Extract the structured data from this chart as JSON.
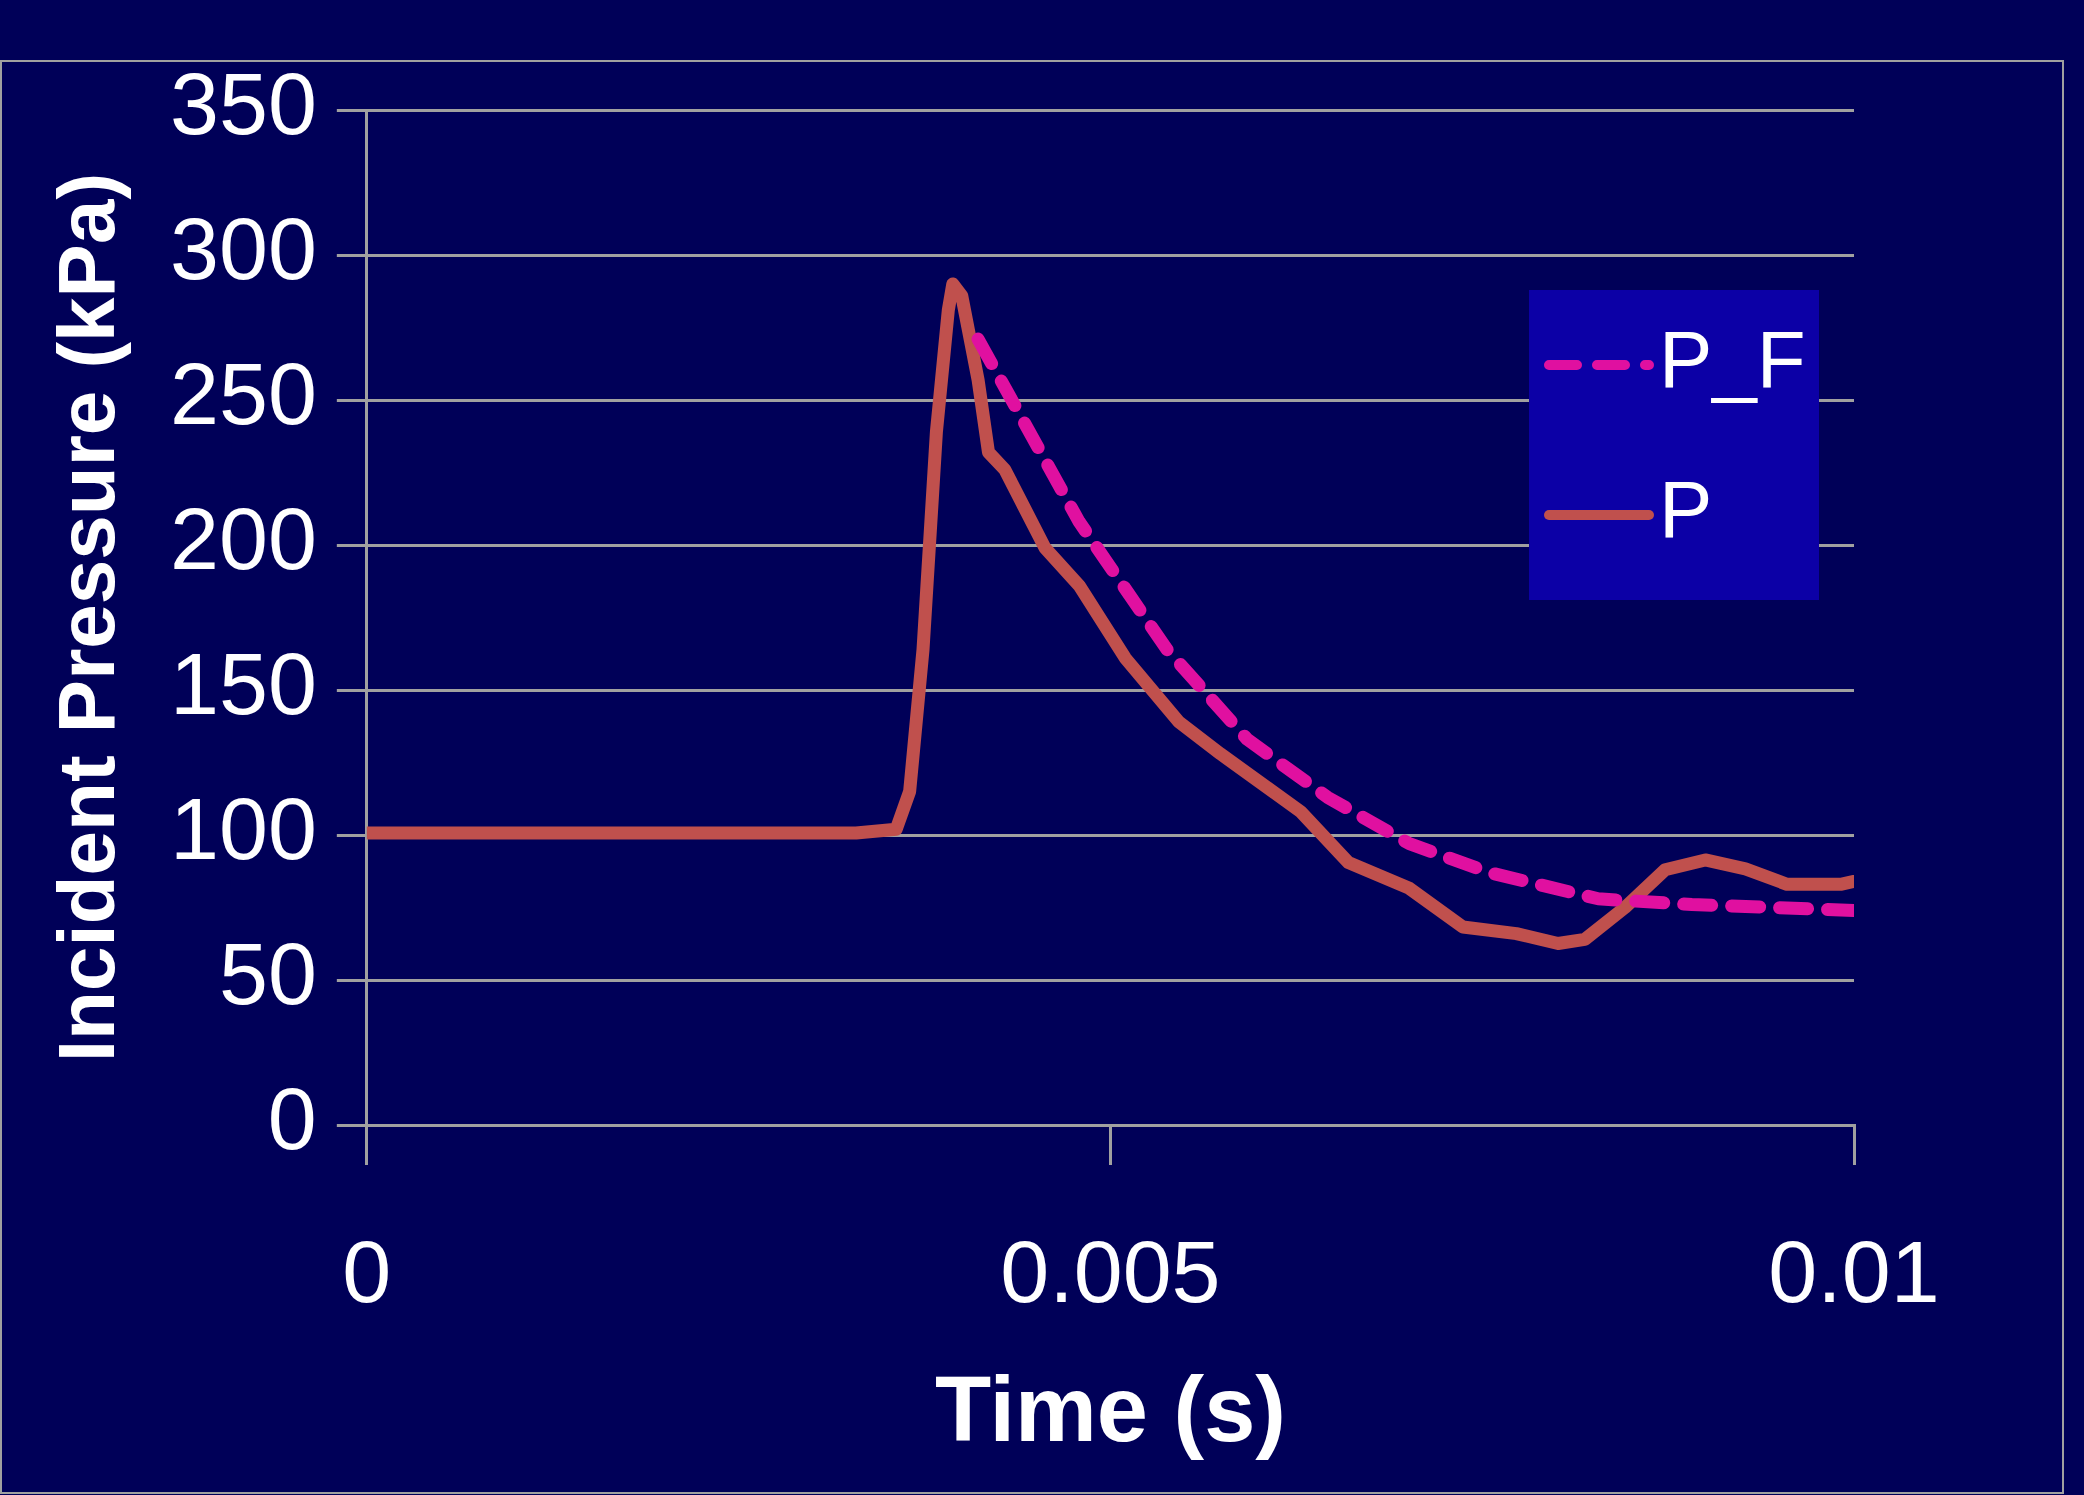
{
  "chart_data": {
    "type": "line",
    "xlabel": "Time (s)",
    "ylabel": "Incident Pressure (kPa)",
    "xlim": [
      0,
      0.01
    ],
    "xticks": [
      0,
      0.005,
      0.01
    ],
    "ylim": [
      0,
      350
    ],
    "yticks": [
      0,
      50,
      100,
      150,
      200,
      250,
      300,
      350
    ],
    "grid": "y",
    "legend": "top right",
    "series": [
      {
        "name": "P_F",
        "color": "#e010a0",
        "line_style": "dashed",
        "x": [
          0.00411,
          0.00438,
          0.00479,
          0.00538,
          0.00592,
          0.00646,
          0.00701,
          0.00755,
          0.00828,
          0.00891,
          0.01
        ],
        "values": [
          271,
          246,
          208,
          164,
          133,
          113,
          97,
          87,
          78,
          76,
          74
        ]
      },
      {
        "name": "P",
        "color": "#c0504d",
        "line_style": "solid",
        "x": [
          0,
          0.00329,
          0.00356,
          0.00365,
          0.00374,
          0.00383,
          0.00391,
          0.00394,
          0.004,
          0.00411,
          0.00418,
          0.00429,
          0.00456,
          0.00479,
          0.0051,
          0.00546,
          0.00574,
          0.00628,
          0.0066,
          0.00701,
          0.00737,
          0.00773,
          0.00801,
          0.00819,
          0.00846,
          0.00873,
          0.009,
          0.00927,
          0.00955,
          0.00991,
          0.01
        ],
        "values": [
          100.7,
          100.7,
          102,
          115,
          164,
          239,
          281,
          290,
          286,
          257,
          232,
          226,
          199,
          186,
          161,
          139,
          128,
          108,
          90.5,
          81.6,
          68.3,
          66,
          62.6,
          64,
          75,
          88,
          91.4,
          88.3,
          83,
          83,
          84
        ]
      }
    ]
  }
}
